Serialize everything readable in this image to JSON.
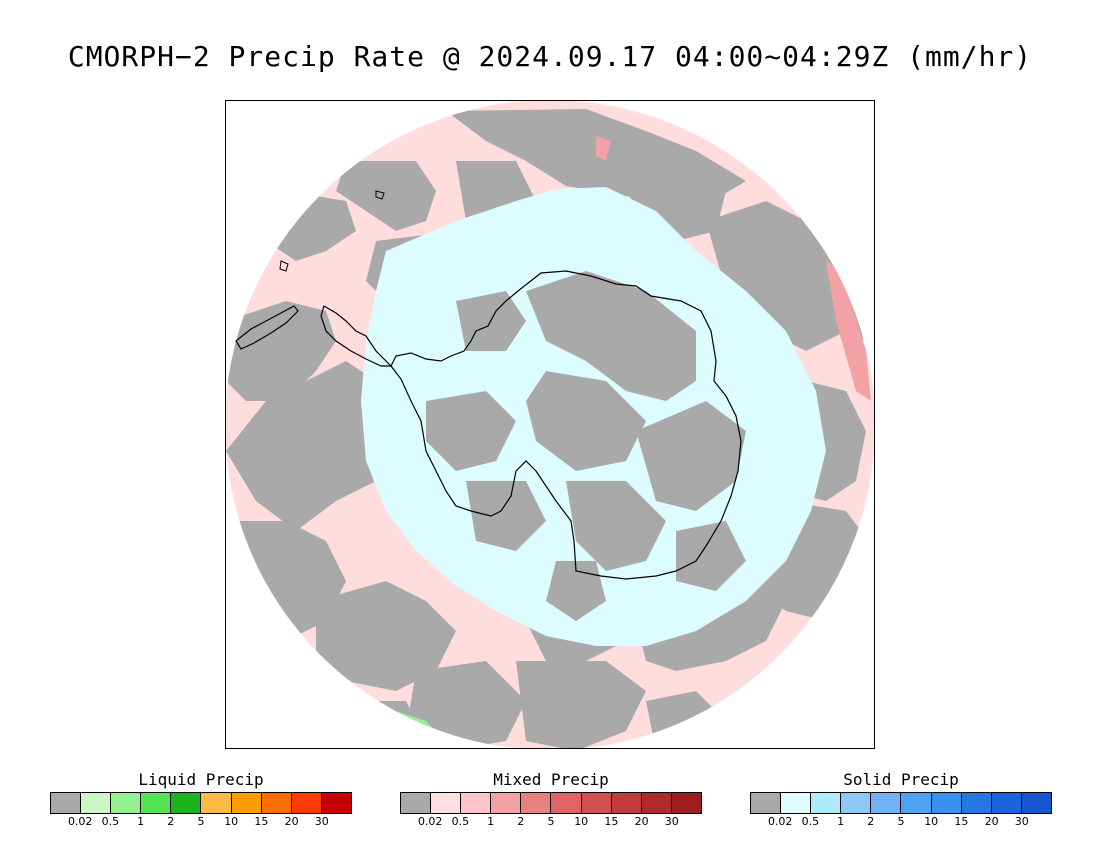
{
  "title": "CMORPH−2 Precip Rate @ 2024.09.17 04:00~04:29Z (mm/hr)",
  "colors": {
    "no_precip": "#a9a9a9",
    "mixed_light": "#ffdddd",
    "solid_light": "#ddfcff",
    "coastline": "#000000"
  },
  "legends": [
    {
      "title": "Liquid Precip",
      "colors": [
        "#a9a9a9",
        "#cbf7c4",
        "#95f092",
        "#55e255",
        "#1fb21f",
        "#fbbb44",
        "#fd9d00",
        "#fc6d00",
        "#fd3a00",
        "#c40000"
      ],
      "ticks": [
        "0.02",
        "0.5",
        "1",
        "2",
        "5",
        "10",
        "15",
        "20",
        "30"
      ]
    },
    {
      "title": "Mixed Precip",
      "colors": [
        "#a9a9a9",
        "#ffdde0",
        "#fcc4c8",
        "#f4a1a6",
        "#e98080",
        "#de6466",
        "#d24f50",
        "#c43b3d",
        "#b02a2c",
        "#9c1e1e"
      ],
      "ticks": [
        "0.02",
        "0.5",
        "1",
        "2",
        "5",
        "10",
        "15",
        "20",
        "30"
      ]
    },
    {
      "title": "Solid Precip",
      "colors": [
        "#a9a9a9",
        "#e1fcff",
        "#aeeafc",
        "#8ec8f8",
        "#72b1f3",
        "#4ea2f0",
        "#3791ed",
        "#2676e6",
        "#1c63dd",
        "#1854cf"
      ],
      "ticks": [
        "0.02",
        "0.5",
        "1",
        "2",
        "5",
        "10",
        "15",
        "20",
        "30"
      ]
    }
  ]
}
